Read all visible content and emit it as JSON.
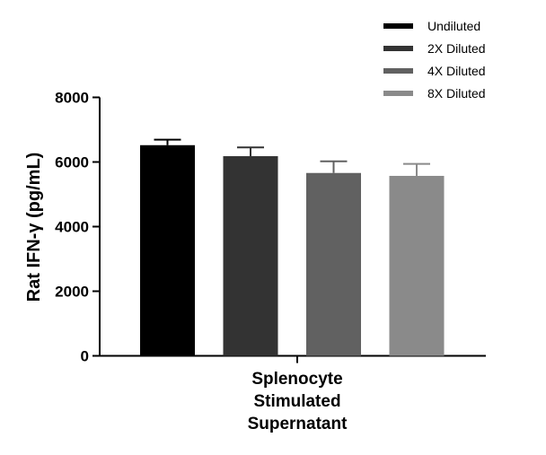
{
  "chart_data": {
    "type": "bar",
    "categories": [
      "Splenocyte Stimulated Supernatant"
    ],
    "category_label_lines": [
      "Splenocyte",
      "Stimulated",
      "Supernatant"
    ],
    "series": [
      {
        "name": "Undiluted",
        "values": [
          6520
        ],
        "error": [
          170
        ],
        "color": "#000000"
      },
      {
        "name": "2X Diluted",
        "values": [
          6180
        ],
        "error": [
          270
        ],
        "color": "#333333"
      },
      {
        "name": "4X Diluted",
        "values": [
          5660
        ],
        "error": [
          360
        ],
        "color": "#616161"
      },
      {
        "name": "8X Diluted",
        "values": [
          5570
        ],
        "error": [
          370
        ],
        "color": "#8a8a8a"
      }
    ],
    "title": "",
    "xlabel": "",
    "ylabel": "Rat IFN-γ (pg/mL)",
    "ylim": [
      0,
      8000
    ],
    "yticks": [
      0,
      2000,
      4000,
      6000,
      8000
    ],
    "ytick_labels": [
      "0",
      "2000",
      "4000",
      "6000",
      "8000"
    ],
    "legend_position": "top-right",
    "grid": false
  }
}
